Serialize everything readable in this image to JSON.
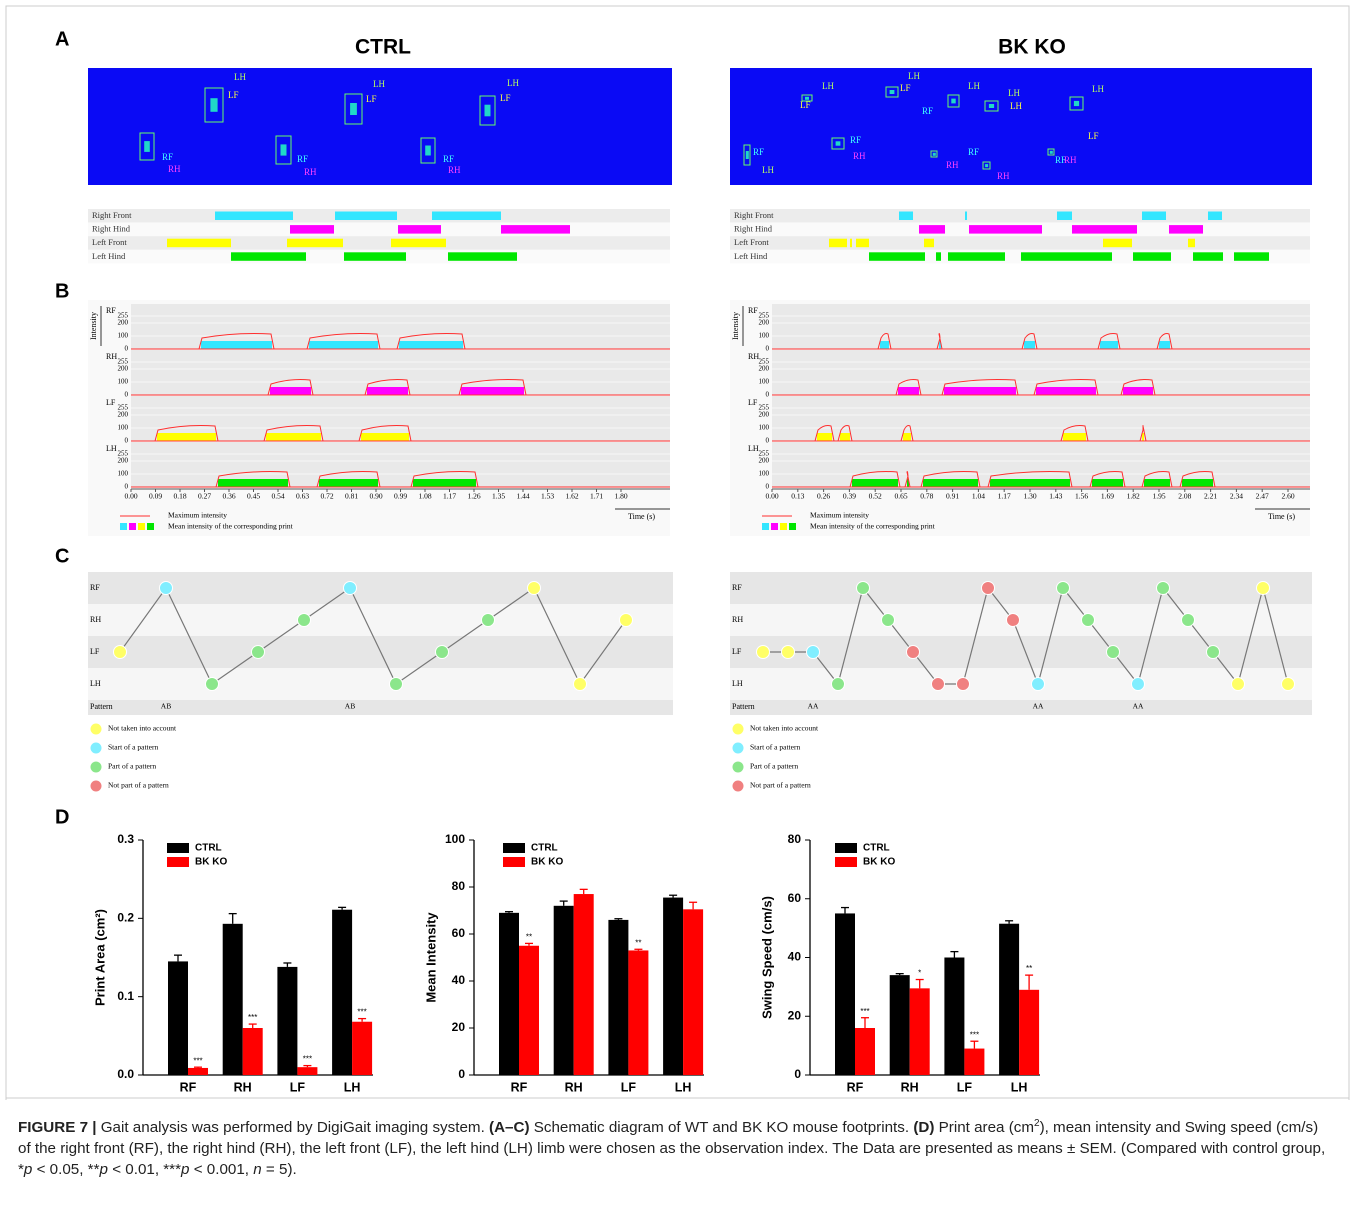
{
  "panel_labels": [
    "A",
    "B",
    "C",
    "D"
  ],
  "group_titles": [
    "CTRL",
    "BK KO"
  ],
  "panel_a": {
    "ctrl_labels": [
      "LH",
      "LF",
      "LH",
      "LF",
      "LH",
      "LF",
      "RF",
      "RH",
      "RF",
      "RH",
      "RF",
      "RH"
    ],
    "ko_labels": [
      "LH",
      "LF",
      "LH",
      "LF",
      "LH",
      "LH",
      "LH",
      "LH",
      "LF",
      "RF",
      "RF",
      "RH",
      "RF",
      "RH",
      "RH",
      "RF",
      "RH",
      "RF",
      "LH"
    ],
    "gait_rows": [
      "Right Front",
      "Right Hind",
      "Left Front",
      "Left Hind"
    ]
  },
  "panel_b": {
    "lanes": [
      "RF",
      "RH",
      "LF",
      "LH"
    ],
    "colors": [
      "#33e6ff",
      "#ff00ff",
      "#ffff00",
      "#00e600"
    ],
    "y_label": "Intensity",
    "intensity_ticks": [
      "255",
      "200",
      "100",
      "0"
    ],
    "ctrl_time_ticks": [
      "0.00",
      "0.09",
      "0.18",
      "0.27",
      "0.36",
      "0.45",
      "0.54",
      "0.63",
      "0.72",
      "0.81",
      "0.90",
      "0.99",
      "1.08",
      "1.17",
      "1.26",
      "1.35",
      "1.44",
      "1.53",
      "1.62",
      "1.71",
      "1.80"
    ],
    "ko_time_ticks": [
      "0.00",
      "0.13",
      "0.26",
      "0.39",
      "0.52",
      "0.65",
      "0.78",
      "0.91",
      "1.04",
      "1.17",
      "1.30",
      "1.43",
      "1.56",
      "1.69",
      "1.82",
      "1.95",
      "2.08",
      "2.21",
      "2.34",
      "2.47",
      "2.60"
    ],
    "time_label": "Time (s)",
    "legend": [
      "Maximum intensity",
      "Mean intensity of the corresponding print"
    ]
  },
  "panel_c": {
    "rows": [
      "RF",
      "RH",
      "LF",
      "LH"
    ],
    "pattern_label": "Pattern",
    "legend": [
      {
        "text": "Not taken into account",
        "color": "#ffff66"
      },
      {
        "text": "Start of a pattern",
        "color": "#80eeff"
      },
      {
        "text": "Part of a pattern",
        "color": "#8be68b"
      },
      {
        "text": "Not part of a pattern",
        "color": "#f08080"
      }
    ],
    "ctrl_nodes": [
      {
        "limb": "LF",
        "color": "#ffff66"
      },
      {
        "limb": "RF",
        "color": "#80eeff",
        "pattern": "AB"
      },
      {
        "limb": "LH",
        "color": "#8be68b"
      },
      {
        "limb": "LF",
        "color": "#8be68b"
      },
      {
        "limb": "RH",
        "color": "#8be68b"
      },
      {
        "limb": "RF",
        "color": "#80eeff",
        "pattern": "AB"
      },
      {
        "limb": "LH",
        "color": "#8be68b"
      },
      {
        "limb": "LF",
        "color": "#8be68b"
      },
      {
        "limb": "RH",
        "color": "#8be68b"
      },
      {
        "limb": "RF",
        "color": "#ffff66"
      },
      {
        "limb": "LH",
        "color": "#ffff66"
      },
      {
        "limb": "RH",
        "color": "#ffff66"
      }
    ],
    "ko_nodes": [
      {
        "limb": "LF",
        "color": "#ffff66"
      },
      {
        "limb": "LF",
        "color": "#ffff66"
      },
      {
        "limb": "LF",
        "color": "#80eeff",
        "pattern": "AA"
      },
      {
        "limb": "LH",
        "color": "#8be68b"
      },
      {
        "limb": "RF",
        "color": "#8be68b"
      },
      {
        "limb": "RH",
        "color": "#8be68b"
      },
      {
        "limb": "LF",
        "color": "#f08080"
      },
      {
        "limb": "LH",
        "color": "#f08080"
      },
      {
        "limb": "LH",
        "color": "#f08080"
      },
      {
        "limb": "RF",
        "color": "#f08080"
      },
      {
        "limb": "RH",
        "color": "#f08080"
      },
      {
        "limb": "LH",
        "color": "#80eeff",
        "pattern": "AA"
      },
      {
        "limb": "RF",
        "color": "#8be68b"
      },
      {
        "limb": "RH",
        "color": "#8be68b"
      },
      {
        "limb": "LF",
        "color": "#8be68b"
      },
      {
        "limb": "LH",
        "color": "#80eeff",
        "pattern": "AA"
      },
      {
        "limb": "RF",
        "color": "#8be68b"
      },
      {
        "limb": "RH",
        "color": "#8be68b"
      },
      {
        "limb": "LF",
        "color": "#8be68b"
      },
      {
        "limb": "LH",
        "color": "#ffff66"
      },
      {
        "limb": "RF",
        "color": "#ffff66"
      },
      {
        "limb": "LH",
        "color": "#ffff66"
      }
    ]
  },
  "chart_data": [
    {
      "type": "bar",
      "ylabel": "Print Area (cm²)",
      "categories": [
        "RF",
        "RH",
        "LF",
        "LH"
      ],
      "ylim": [
        0,
        0.3
      ],
      "yticks": [
        {
          "value": 0,
          "label": "0.0"
        },
        0.1,
        0.2,
        0.3
      ],
      "series": [
        {
          "name": "CTRL",
          "color": "#000000",
          "values": [
            0.145,
            0.193,
            0.138,
            0.211
          ],
          "errors": [
            0.008,
            0.013,
            0.005,
            0.003
          ]
        },
        {
          "name": "BK KO",
          "color": "#ff0000",
          "values": [
            0.009,
            0.06,
            0.01,
            0.068
          ],
          "errors": [
            0.001,
            0.005,
            0.002,
            0.004
          ],
          "significance": [
            "***",
            "***",
            "***",
            "***"
          ]
        }
      ]
    },
    {
      "type": "bar",
      "ylabel": "Mean Intensity",
      "categories": [
        "RF",
        "RH",
        "LF",
        "LH"
      ],
      "ylim": [
        0,
        100
      ],
      "yticks": [
        0,
        20,
        40,
        60,
        80,
        100
      ],
      "series": [
        {
          "name": "CTRL",
          "color": "#000000",
          "values": [
            69,
            72,
            66,
            75.5
          ],
          "errors": [
            0.5,
            2,
            0.5,
            1
          ]
        },
        {
          "name": "BK KO",
          "color": "#ff0000",
          "values": [
            55,
            77,
            53,
            70.5
          ],
          "errors": [
            1,
            2,
            0.5,
            3
          ],
          "significance": [
            "**",
            null,
            "**",
            null
          ]
        }
      ]
    },
    {
      "type": "bar",
      "ylabel": "Swing Speed (cm/s)",
      "categories": [
        "RF",
        "RH",
        "LF",
        "LH"
      ],
      "ylim": [
        0,
        80
      ],
      "yticks": [
        0,
        20,
        40,
        60,
        80
      ],
      "series": [
        {
          "name": "CTRL",
          "color": "#000000",
          "values": [
            55,
            34,
            40,
            51.5
          ],
          "errors": [
            2,
            0.5,
            2,
            1
          ]
        },
        {
          "name": "BK KO",
          "color": "#ff0000",
          "values": [
            16,
            29.5,
            9,
            29
          ],
          "errors": [
            3.5,
            3,
            2.5,
            5
          ],
          "significance": [
            "***",
            "*",
            "***",
            "**"
          ]
        }
      ]
    }
  ],
  "caption": [
    {
      "text": "FIGURE 7 |",
      "style": "b"
    },
    {
      "text": " Gait analysis was performed by DigiGait imaging system. "
    },
    {
      "text": "(A–C)",
      "style": "b"
    },
    {
      "text": " Schematic diagram of WT and BK KO mouse footprints. "
    },
    {
      "text": "(D)",
      "style": "b"
    },
    {
      "text": " Print area (cm"
    },
    {
      "text": "2",
      "style": "sup"
    },
    {
      "text": "), mean intensity and Swing speed (cm/s) of the right front (RF), the right hind (RH), the left front (LF), the left hind (LH) limb were chosen as the observation index. The Data are presented as means ± SEM. (Compared with control group, *"
    },
    {
      "text": "p",
      "style": "i"
    },
    {
      "text": " < 0.05, **"
    },
    {
      "text": "p",
      "style": "i"
    },
    {
      "text": " < 0.01, ***"
    },
    {
      "text": "p",
      "style": "i"
    },
    {
      "text": " < 0.001, "
    },
    {
      "text": "n",
      "style": "i"
    },
    {
      "text": " = 5)."
    }
  ]
}
